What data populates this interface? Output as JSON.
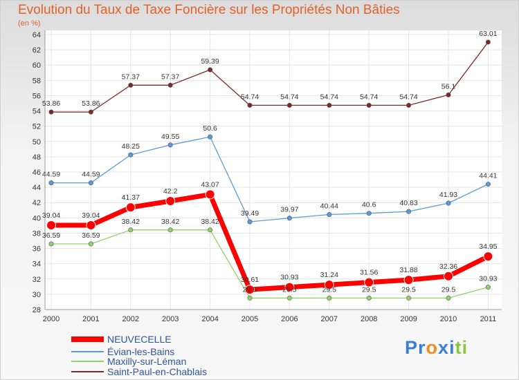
{
  "chart_data": {
    "type": "line",
    "title": "Evolution du Taux de Taxe Foncière sur les Propriétés Non Bâties",
    "ylabel": "(en %)",
    "xlabel": "",
    "ylim": [
      28,
      64
    ],
    "yticks": [
      "28",
      "30",
      "32",
      "34",
      "36",
      "38",
      "40",
      "42",
      "44",
      "46",
      "48",
      "50",
      "52",
      "54",
      "56",
      "58",
      "60",
      "62",
      "64"
    ],
    "x": [
      "2000",
      "2001",
      "2002",
      "2003",
      "2004",
      "2005",
      "2006",
      "2007",
      "2008",
      "2009",
      "2010",
      "2011"
    ],
    "grid": true,
    "legend_position": "bottom-left",
    "series": [
      {
        "name": "NEUVECELLE",
        "color": "#ff0000",
        "values": [
          39.04,
          39.04,
          41.37,
          42.2,
          43.07,
          30.61,
          30.93,
          31.24,
          31.56,
          31.88,
          32.36,
          34.95
        ],
        "labels": [
          "39.04",
          "39.04",
          "41.37",
          "42.2",
          "43.07",
          "30.61",
          "30.93",
          "31.24",
          "31.56",
          "31.88",
          "32.36",
          "34.95"
        ]
      },
      {
        "name": "Évian-les-Bains",
        "color": "#5b9bd5",
        "values": [
          44.59,
          44.59,
          48.25,
          49.55,
          50.6,
          39.49,
          39.97,
          40.44,
          40.6,
          40.83,
          41.93,
          44.41
        ],
        "labels": [
          "44.59",
          "44.59",
          "48.25",
          "49.55",
          "50.6",
          "39.49",
          "39.97",
          "40.44",
          "40.6",
          "40.83",
          "41.93",
          "44.41"
        ]
      },
      {
        "name": "Maxilly-sur-Léman",
        "color": "#8fd16a",
        "values": [
          36.59,
          36.59,
          38.42,
          38.42,
          38.42,
          29.5,
          29.5,
          29.5,
          29.5,
          29.5,
          29.5,
          30.93
        ],
        "labels": [
          "36.59",
          "36.59",
          "38.42",
          "38.42",
          "38.42",
          "29.5",
          "29.5",
          "29.5",
          "29.5",
          "29.5",
          "29.5",
          "30.93"
        ]
      },
      {
        "name": "Saint-Paul-en-Chablais",
        "color": "#7b2a2a",
        "values": [
          53.86,
          53.86,
          57.37,
          57.37,
          59.39,
          54.74,
          54.74,
          54.74,
          54.74,
          54.74,
          56.1,
          63.01
        ],
        "labels": [
          "53.86",
          "53.86",
          "57.37",
          "57.37",
          "59.39",
          "54.74",
          "54.74",
          "54.74",
          "54.74",
          "54.74",
          "56.1",
          "63.01"
        ]
      }
    ]
  },
  "brand": {
    "text": "Proxiti",
    "letters": [
      "P",
      "r",
      "o",
      "x",
      "i",
      "t",
      "i"
    ],
    "colors": [
      "#3b7dd8",
      "#3b7dd8",
      "#f08c1e",
      "#3b7dd8",
      "#3b7dd8",
      "#8cc63f",
      "#8cc63f"
    ]
  }
}
